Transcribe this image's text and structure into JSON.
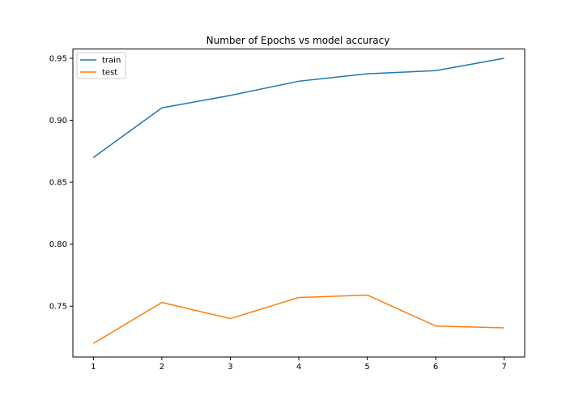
{
  "chart_data": {
    "type": "line",
    "title": "Number of Epochs vs model accuracy",
    "xlabel": "",
    "ylabel": "",
    "x": [
      1,
      2,
      3,
      4,
      5,
      6,
      7
    ],
    "xlim": [
      0.7,
      7.3
    ],
    "ylim": [
      0.709,
      0.9575
    ],
    "xticks": [
      "1",
      "2",
      "3",
      "4",
      "5",
      "6",
      "7"
    ],
    "yticks": [
      0.75,
      0.8,
      0.85,
      0.9,
      0.95
    ],
    "ytick_labels": [
      "0.75",
      "0.80",
      "0.85",
      "0.90",
      "0.95"
    ],
    "legend_position": "top-left",
    "series": [
      {
        "name": "train",
        "color": "#1f77b4",
        "values": [
          0.87,
          0.91,
          0.92,
          0.9315,
          0.9375,
          0.94,
          0.95
        ]
      },
      {
        "name": "test",
        "color": "#ff7f0e",
        "values": [
          0.72,
          0.753,
          0.74,
          0.757,
          0.759,
          0.734,
          0.7325
        ]
      }
    ]
  }
}
